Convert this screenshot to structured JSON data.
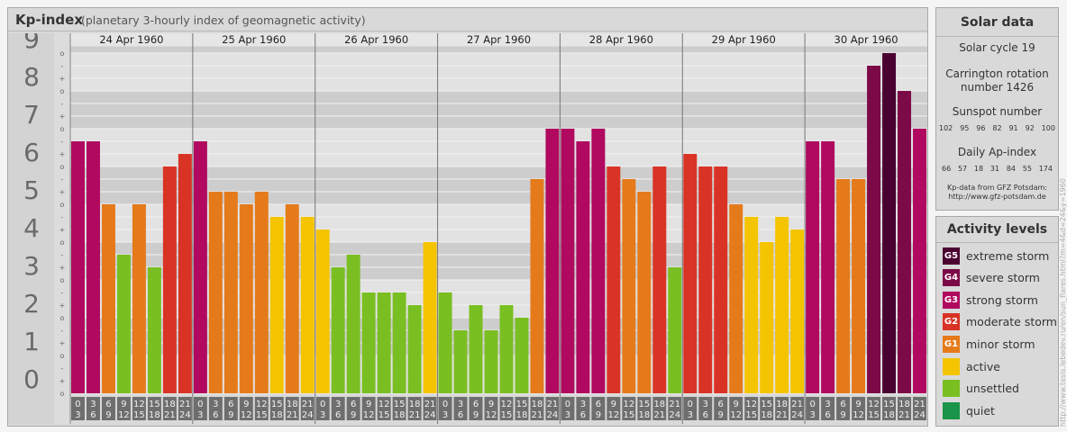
{
  "header": {
    "title": "Kp-index",
    "subtitle": "(planetary 3-hourly index of geomagnetic activity)"
  },
  "chart_data": {
    "type": "bar",
    "title": "Kp-index",
    "subtitle": "(planetary 3-hourly index of geomagnetic activity)",
    "ylim": [
      0,
      9
    ],
    "y_ticks": [
      "0",
      "1",
      "2",
      "3",
      "4",
      "5",
      "6",
      "7",
      "8",
      "9"
    ],
    "y_minor_ticks": [
      "o",
      "+",
      "-"
    ],
    "days": [
      "24 Apr 1960",
      "25 Apr 1960",
      "26 Apr 1960",
      "27 Apr 1960",
      "28 Apr 1960",
      "29 Apr 1960",
      "30 Apr 1960"
    ],
    "intervals": [
      [
        "0",
        "3"
      ],
      [
        "3",
        "6"
      ],
      [
        "6",
        "9"
      ],
      [
        "9",
        "12"
      ],
      [
        "12",
        "15"
      ],
      [
        "15",
        "18"
      ],
      [
        "18",
        "21"
      ],
      [
        "21",
        "24"
      ]
    ],
    "values": [
      [
        6.667,
        6.667,
        5.0,
        3.667,
        5.0,
        3.333,
        6.0,
        6.333
      ],
      [
        6.667,
        5.333,
        5.333,
        5.0,
        5.333,
        4.667,
        5.0,
        4.667
      ],
      [
        4.333,
        3.333,
        3.667,
        2.667,
        2.667,
        2.667,
        2.333,
        4.0
      ],
      [
        2.667,
        1.667,
        2.333,
        1.667,
        2.333,
        2.0,
        5.667,
        7.0
      ],
      [
        7.0,
        6.667,
        7.0,
        6.0,
        5.667,
        5.333,
        6.0,
        3.333
      ],
      [
        6.333,
        6.0,
        6.0,
        5.0,
        4.667,
        4.0,
        4.667,
        4.333
      ],
      [
        6.667,
        6.667,
        5.667,
        5.667,
        8.667,
        9.0,
        8.0,
        7.0
      ]
    ],
    "grid": true
  },
  "solar": {
    "title": "Solar data",
    "cycle": "Solar cycle 19",
    "rotation_line1": "Carrington rotation",
    "rotation_line2": "number 1426",
    "sunspot_title": "Sunspot number",
    "sunspots": [
      "102",
      "95",
      "96",
      "82",
      "91",
      "92",
      "100"
    ],
    "ap_title": "Daily Ap-index",
    "ap": [
      "66",
      "57",
      "18",
      "31",
      "84",
      "55",
      "174"
    ],
    "source_line1": "Kp-data from  GFZ Potsdam:",
    "source_line2": "http://www.gfz-potsdam.de"
  },
  "activity": {
    "title": "Activity levels",
    "items": [
      {
        "code": "G5",
        "label": "extreme storm",
        "color": "#4a0030"
      },
      {
        "code": "G4",
        "label": "severe storm",
        "color": "#7d0a48"
      },
      {
        "code": "G3",
        "label": "strong storm",
        "color": "#b0095f"
      },
      {
        "code": "G2",
        "label": "moderate storm",
        "color": "#d93325"
      },
      {
        "code": "G1",
        "label": "minor storm",
        "color": "#e57a1b"
      },
      {
        "code": "",
        "label": "active",
        "color": "#f5c400"
      },
      {
        "code": "",
        "label": "unsettled",
        "color": "#7abf22"
      },
      {
        "code": "",
        "label": "quiet",
        "color": "#1a9448"
      }
    ]
  },
  "watermark": "http://www.tesis.lebedev.ru/en/sun_flares.html?m=4&d=24&y=1960"
}
